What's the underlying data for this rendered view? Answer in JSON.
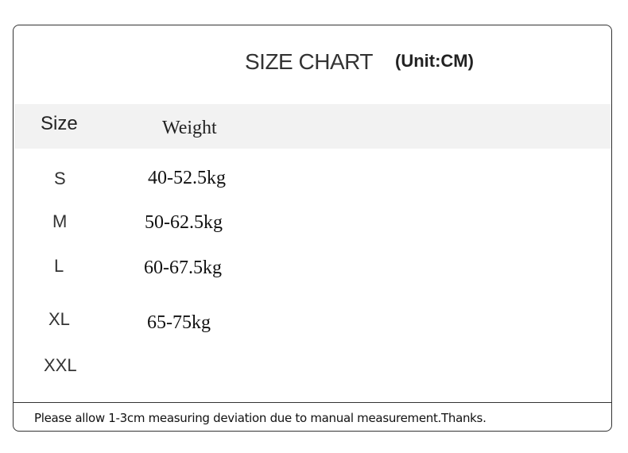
{
  "title": "SIZE CHART",
  "unit": "(Unit:CM)",
  "headers": {
    "size": "Size",
    "weight": "Weight"
  },
  "rows": [
    {
      "size": "S",
      "weight": "40-52.5kg"
    },
    {
      "size": "M",
      "weight": "50-62.5kg"
    },
    {
      "size": "L",
      "weight": "60-67.5kg"
    },
    {
      "size": "XL",
      "weight": "65-75kg"
    },
    {
      "size": "XXL",
      "weight": ""
    }
  ],
  "footer": "Please allow 1-3cm measuring deviation due to manual measurement.Thanks."
}
